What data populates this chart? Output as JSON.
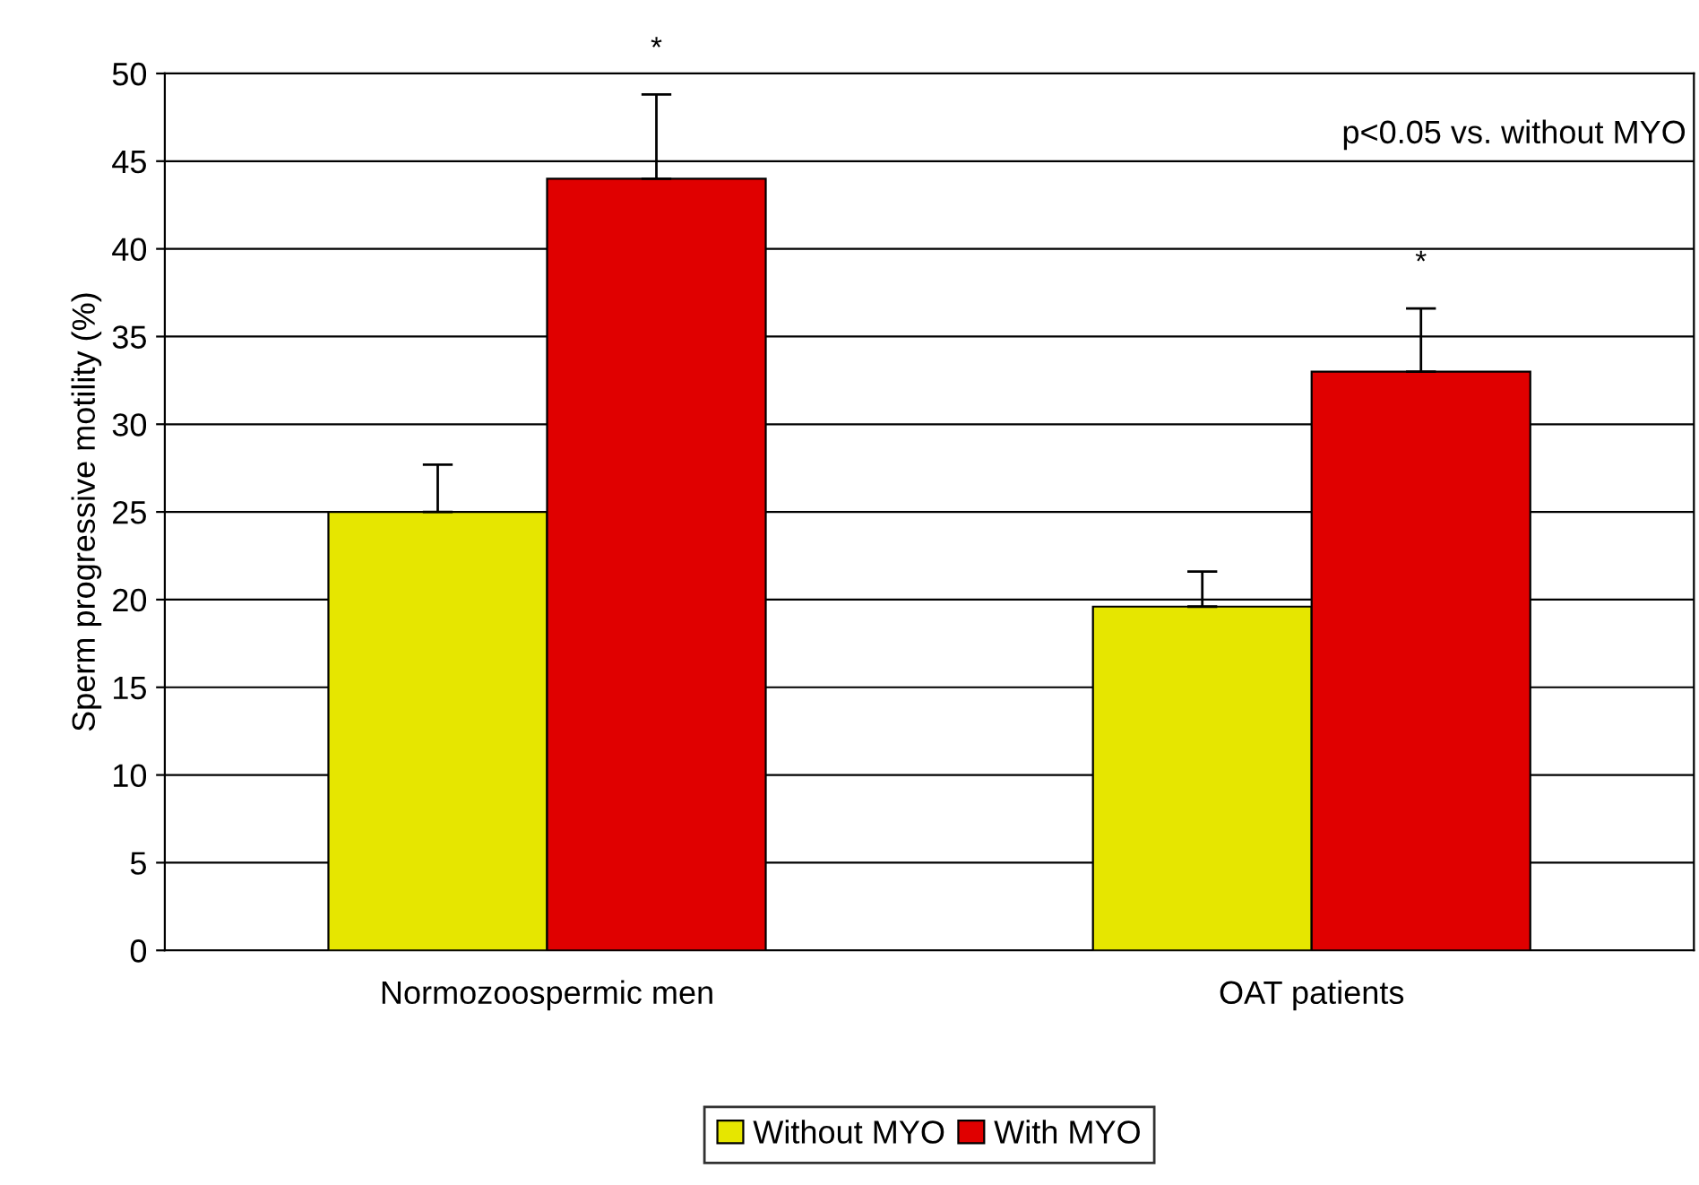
{
  "chart_data": {
    "type": "bar",
    "ylabel": "Sperm progressive motility (%)",
    "categories": [
      "Normozoospermic men",
      "OAT patients"
    ],
    "series": [
      {
        "name": "Without MYO",
        "color": "#e6e600",
        "values": [
          25,
          19.6
        ],
        "errors": [
          2.7,
          2.0
        ]
      },
      {
        "name": "With MYO",
        "color": "#e00000",
        "values": [
          44,
          33
        ],
        "errors": [
          4.8,
          3.6
        ]
      }
    ],
    "ylim": [
      0,
      50
    ],
    "yticks": [
      0,
      5,
      10,
      15,
      20,
      25,
      30,
      35,
      40,
      45,
      50
    ],
    "grid": "y",
    "legend": "bottom",
    "annotations": [
      "*",
      "*",
      "p<0.05 vs. without MYO"
    ]
  }
}
